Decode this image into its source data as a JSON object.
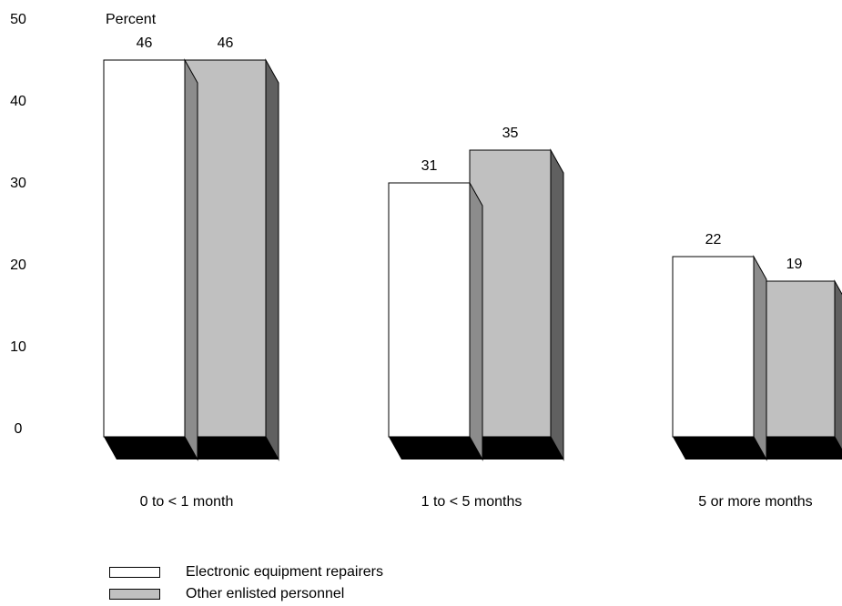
{
  "chart_data": {
    "type": "bar",
    "ylabel": "Percent",
    "ylim": [
      0,
      50
    ],
    "yticks": [
      0,
      10,
      20,
      30,
      40,
      50
    ],
    "grid": false,
    "legend_position": "bottom-left",
    "categories": [
      "0 to < 1 month",
      "1 to < 5 months",
      "5 or more months"
    ],
    "series": [
      {
        "name": "Electronic equipment repairers",
        "values": [
          46,
          31,
          22
        ],
        "color": "#ffffff",
        "side_color": "#8c8c8c"
      },
      {
        "name": "Other enlisted personnel",
        "values": [
          46,
          35,
          19
        ],
        "color": "#c0c0c0",
        "side_color": "#606060"
      }
    ],
    "floor_color": "#000000"
  }
}
